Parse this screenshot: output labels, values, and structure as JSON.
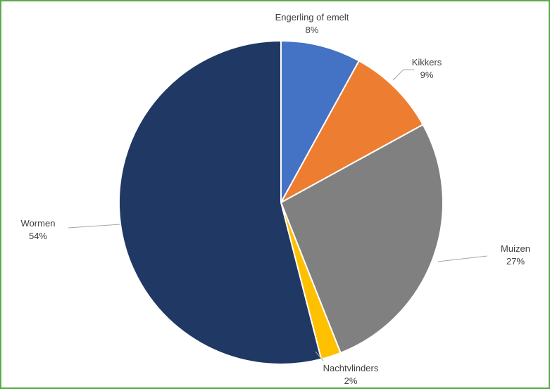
{
  "chart_data": {
    "type": "pie",
    "title": "",
    "start_angle_deg": 0,
    "direction": "clockwise",
    "slices": [
      {
        "name": "Engerling of emelt",
        "value": 8,
        "label": "8%",
        "color": "#4472c4"
      },
      {
        "name": "Kikkers",
        "value": 9,
        "label": "9%",
        "color": "#ed7d31"
      },
      {
        "name": "Muizen",
        "value": 27,
        "label": "27%",
        "color": "#808080"
      },
      {
        "name": "Nachtvlinders",
        "value": 2,
        "label": "2%",
        "color": "#ffc000"
      },
      {
        "name": "Wormen",
        "value": 54,
        "label": "54%",
        "color": "#203864"
      }
    ],
    "leader_line_color": "#a6a6a6",
    "slice_border_color": "#ffffff"
  },
  "frame": {
    "border_color": "#5aac4a"
  }
}
